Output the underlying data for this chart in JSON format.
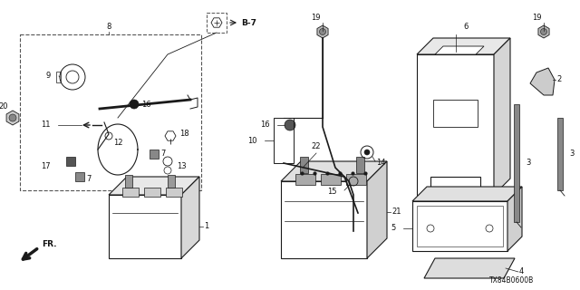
{
  "bg_color": "#ffffff",
  "line_color": "#1a1a1a",
  "label_color": "#111111",
  "figsize": [
    6.4,
    3.2
  ],
  "dpi": 100,
  "watermark": "TX84B0600B",
  "xlim": [
    0,
    640
  ],
  "ylim": [
    0,
    320
  ]
}
